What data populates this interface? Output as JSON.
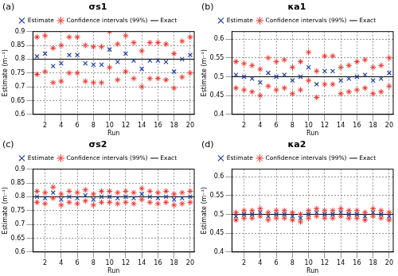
{
  "chart_data": [
    {
      "type": "scatter",
      "panel_label": "(a)",
      "title": "σs1",
      "x_label": "Run",
      "y_label": "Estimate (m⁻¹)",
      "x": [
        1,
        2,
        3,
        4,
        5,
        6,
        7,
        8,
        9,
        10,
        11,
        12,
        13,
        14,
        15,
        16,
        17,
        18,
        19,
        20
      ],
      "xlim": [
        0.5,
        20.5
      ],
      "xticks": [
        2,
        4,
        6,
        8,
        10,
        12,
        14,
        16,
        18,
        20
      ],
      "ylim": [
        0.6,
        0.9
      ],
      "yticks": [
        0.6,
        0.65,
        0.7,
        0.75,
        0.8,
        0.85,
        0.9
      ],
      "grid": true,
      "legend": "top",
      "series": [
        {
          "name": "Estimate",
          "color": "#1f3fa0",
          "marker": "x",
          "values": [
            0.81,
            0.82,
            0.775,
            0.785,
            0.815,
            0.815,
            0.785,
            0.78,
            0.78,
            0.835,
            0.79,
            0.82,
            0.795,
            0.765,
            0.795,
            0.795,
            0.79,
            0.755,
            0.8,
            0.815
          ]
        },
        {
          "name": "Confidence intervals (99%)",
          "color": "#e8342c",
          "marker": "star",
          "lower": [
            0.745,
            0.755,
            0.715,
            0.72,
            0.75,
            0.75,
            0.72,
            0.715,
            0.715,
            0.77,
            0.725,
            0.755,
            0.73,
            0.7,
            0.73,
            0.73,
            0.725,
            0.695,
            0.735,
            0.75
          ],
          "upper": [
            0.88,
            0.885,
            0.84,
            0.85,
            0.88,
            0.88,
            0.85,
            0.845,
            0.845,
            0.9,
            0.855,
            0.885,
            0.86,
            0.83,
            0.86,
            0.86,
            0.855,
            0.82,
            0.865,
            0.88
          ]
        },
        {
          "name": "Exact",
          "color": "#000000",
          "line_style": "solid",
          "value": 0.8
        }
      ]
    },
    {
      "type": "scatter",
      "panel_label": "(b)",
      "title": "κa1",
      "x_label": "Run",
      "y_label": "Estimate (m⁻¹)",
      "x": [
        1,
        2,
        3,
        4,
        5,
        6,
        7,
        8,
        9,
        10,
        11,
        12,
        13,
        14,
        15,
        16,
        17,
        18,
        19,
        20
      ],
      "xlim": [
        0.5,
        20.5
      ],
      "xticks": [
        2,
        4,
        6,
        8,
        10,
        12,
        14,
        16,
        18,
        20
      ],
      "ylim": [
        0.4,
        0.62
      ],
      "yticks": [
        0.4,
        0.45,
        0.5,
        0.55,
        0.6
      ],
      "grid": true,
      "legend": "top",
      "series": [
        {
          "name": "Estimate",
          "color": "#1f3fa0",
          "marker": "x",
          "values": [
            0.505,
            0.5,
            0.495,
            0.485,
            0.51,
            0.5,
            0.505,
            0.49,
            0.5,
            0.525,
            0.48,
            0.515,
            0.515,
            0.49,
            0.495,
            0.5,
            0.505,
            0.49,
            0.495,
            0.51
          ]
        },
        {
          "name": "Confidence intervals (99%)",
          "color": "#e8342c",
          "marker": "star",
          "lower": [
            0.47,
            0.465,
            0.46,
            0.45,
            0.475,
            0.465,
            0.47,
            0.455,
            0.465,
            0.49,
            0.445,
            0.48,
            0.48,
            0.455,
            0.46,
            0.465,
            0.47,
            0.455,
            0.46,
            0.475
          ],
          "upper": [
            0.54,
            0.535,
            0.53,
            0.52,
            0.55,
            0.54,
            0.545,
            0.525,
            0.54,
            0.565,
            0.515,
            0.555,
            0.555,
            0.525,
            0.53,
            0.54,
            0.545,
            0.525,
            0.53,
            0.55
          ]
        },
        {
          "name": "Exact",
          "color": "#000000",
          "line_style": "solid",
          "value": 0.5
        }
      ]
    },
    {
      "type": "scatter",
      "panel_label": "(c)",
      "title": "σs2",
      "x_label": "Run",
      "y_label": "Estimate (m⁻¹)",
      "x": [
        1,
        2,
        3,
        4,
        5,
        6,
        7,
        8,
        9,
        10,
        11,
        12,
        13,
        14,
        15,
        16,
        17,
        18,
        19,
        20
      ],
      "xlim": [
        0.5,
        20.5
      ],
      "xticks": [
        2,
        4,
        6,
        8,
        10,
        12,
        14,
        16,
        18,
        20
      ],
      "ylim": [
        0.6,
        0.9
      ],
      "yticks": [
        0.6,
        0.65,
        0.7,
        0.75,
        0.8,
        0.85,
        0.9
      ],
      "grid": true,
      "legend": "top",
      "series": [
        {
          "name": "Estimate",
          "color": "#1f3fa0",
          "marker": "x",
          "values": [
            0.8,
            0.795,
            0.815,
            0.79,
            0.8,
            0.795,
            0.805,
            0.79,
            0.8,
            0.8,
            0.795,
            0.8,
            0.795,
            0.81,
            0.8,
            0.795,
            0.8,
            0.79,
            0.795,
            0.8
          ]
        },
        {
          "name": "Confidence intervals (99%)",
          "color": "#e8342c",
          "marker": "star",
          "lower": [
            0.78,
            0.775,
            0.795,
            0.77,
            0.78,
            0.775,
            0.785,
            0.77,
            0.78,
            0.78,
            0.775,
            0.78,
            0.775,
            0.79,
            0.78,
            0.775,
            0.78,
            0.77,
            0.775,
            0.78
          ],
          "upper": [
            0.82,
            0.815,
            0.835,
            0.81,
            0.82,
            0.815,
            0.825,
            0.81,
            0.82,
            0.82,
            0.815,
            0.82,
            0.815,
            0.83,
            0.82,
            0.815,
            0.82,
            0.81,
            0.815,
            0.82
          ]
        },
        {
          "name": "Exact",
          "color": "#000000",
          "line_style": "solid",
          "value": 0.8
        }
      ]
    },
    {
      "type": "scatter",
      "panel_label": "(d)",
      "title": "κa2",
      "x_label": "Run",
      "y_label": "Estimate (m⁻¹)",
      "x": [
        1,
        2,
        3,
        4,
        5,
        6,
        7,
        8,
        9,
        10,
        11,
        12,
        13,
        14,
        15,
        16,
        17,
        18,
        19,
        20
      ],
      "xlim": [
        0.5,
        20.5
      ],
      "xticks": [
        2,
        4,
        6,
        8,
        10,
        12,
        14,
        16,
        18,
        20
      ],
      "ylim": [
        0.4,
        0.62
      ],
      "yticks": [
        0.4,
        0.45,
        0.5,
        0.55,
        0.6
      ],
      "grid": true,
      "legend": "top",
      "series": [
        {
          "name": "Estimate",
          "color": "#1f3fa0",
          "marker": "x",
          "values": [
            0.495,
            0.5,
            0.5,
            0.505,
            0.495,
            0.5,
            0.5,
            0.495,
            0.49,
            0.5,
            0.505,
            0.5,
            0.5,
            0.505,
            0.5,
            0.5,
            0.495,
            0.505,
            0.5,
            0.495
          ]
        },
        {
          "name": "Confidence intervals (99%)",
          "color": "#e8342c",
          "marker": "star",
          "lower": [
            0.485,
            0.49,
            0.49,
            0.495,
            0.485,
            0.49,
            0.49,
            0.485,
            0.48,
            0.49,
            0.495,
            0.49,
            0.49,
            0.495,
            0.49,
            0.49,
            0.485,
            0.495,
            0.49,
            0.485
          ],
          "upper": [
            0.505,
            0.51,
            0.51,
            0.515,
            0.505,
            0.51,
            0.51,
            0.505,
            0.5,
            0.51,
            0.515,
            0.51,
            0.51,
            0.515,
            0.51,
            0.51,
            0.505,
            0.515,
            0.51,
            0.505
          ]
        },
        {
          "name": "Exact",
          "color": "#000000",
          "line_style": "solid",
          "value": 0.5
        }
      ]
    }
  ]
}
